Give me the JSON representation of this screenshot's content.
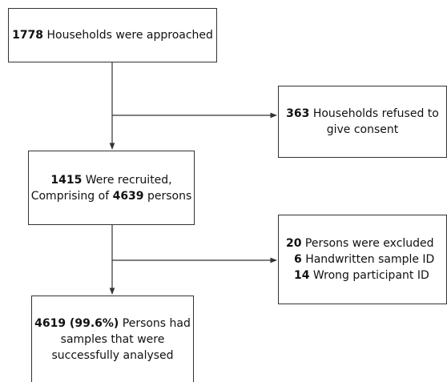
{
  "flowchart": {
    "approached": {
      "count": "1778",
      "text": " Households were approached"
    },
    "refused": {
      "count": "363",
      "text_line1": " Households refused to",
      "text_line2": "give consent"
    },
    "recruited": {
      "count": "1415",
      "text_line1": " Were recruited,",
      "line2_prefix": "Comprising of ",
      "persons_count": "4639",
      "line2_suffix": " persons"
    },
    "excluded": {
      "count": "20",
      "text": " Persons were excluded",
      "reasons": [
        {
          "count": "6",
          "label": " Handwritten sample ID"
        },
        {
          "count": "14",
          "label": " Wrong participant ID"
        }
      ]
    },
    "analysed": {
      "count": "4619 (99.6%)",
      "text_line1": " Persons had",
      "text_line2": "samples that were",
      "text_line3": "successfully analysed"
    }
  },
  "colors": {
    "line": "#333333",
    "text": "#111111",
    "background": "#ffffff"
  }
}
